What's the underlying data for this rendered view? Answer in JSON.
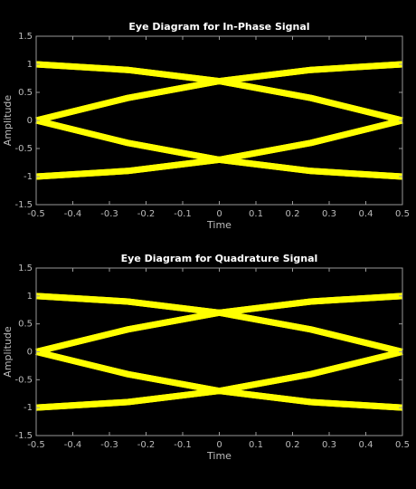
{
  "chart_data": [
    {
      "type": "line",
      "title": "Eye Diagram for In-Phase Signal",
      "x_label": "Time",
      "y_label": "Amplitude",
      "x": [
        -0.5,
        -0.25,
        0,
        0.25,
        0.5
      ],
      "series": [
        {
          "color": "#ffff00",
          "values": [
            1,
            0.9,
            0.7,
            0.9,
            1
          ]
        },
        {
          "color": "#ffff00",
          "values": [
            1,
            0.9,
            0.7,
            0.4,
            0
          ]
        },
        {
          "color": "#ffff00",
          "values": [
            0,
            0.4,
            0.7,
            0.9,
            1
          ]
        },
        {
          "color": "#ffff00",
          "values": [
            0,
            0.4,
            0.7,
            0.4,
            0
          ]
        },
        {
          "color": "#ffff00",
          "values": [
            -1,
            -0.9,
            -0.7,
            -0.9,
            -1
          ]
        },
        {
          "color": "#ffff00",
          "values": [
            -1,
            -0.9,
            -0.7,
            -0.4,
            0
          ]
        },
        {
          "color": "#ffff00",
          "values": [
            0,
            -0.4,
            -0.7,
            -0.9,
            -1
          ]
        },
        {
          "color": "#ffff00",
          "values": [
            0,
            -0.4,
            -0.7,
            -0.4,
            0
          ]
        }
      ],
      "xlim": [
        -0.5,
        0.5
      ],
      "xticks": [
        -0.5,
        -0.4,
        -0.3,
        -0.2,
        -0.1,
        0,
        0.1,
        0.2,
        0.3,
        0.4,
        0.5
      ],
      "ylim": [
        -1.5,
        1.5
      ],
      "yticks": [
        -1.5,
        -1,
        -0.5,
        0,
        0.5,
        1,
        1.5
      ]
    },
    {
      "type": "line",
      "title": "Eye Diagram for Quadrature Signal",
      "x_label": "Time",
      "y_label": "Amplitude",
      "x": [
        -0.5,
        -0.25,
        0,
        0.25,
        0.5
      ],
      "series": [
        {
          "color": "#ffff00",
          "values": [
            1,
            0.9,
            0.7,
            0.9,
            1
          ]
        },
        {
          "color": "#ffff00",
          "values": [
            1,
            0.9,
            0.7,
            0.4,
            0
          ]
        },
        {
          "color": "#ffff00",
          "values": [
            0,
            0.4,
            0.7,
            0.9,
            1
          ]
        },
        {
          "color": "#ffff00",
          "values": [
            0,
            0.4,
            0.7,
            0.4,
            0
          ]
        },
        {
          "color": "#ffff00",
          "values": [
            -1,
            -0.9,
            -0.7,
            -0.9,
            -1
          ]
        },
        {
          "color": "#ffff00",
          "values": [
            -1,
            -0.9,
            -0.7,
            -0.4,
            0
          ]
        },
        {
          "color": "#ffff00",
          "values": [
            0,
            -0.4,
            -0.7,
            -0.9,
            -1
          ]
        },
        {
          "color": "#ffff00",
          "values": [
            0,
            -0.4,
            -0.7,
            -0.4,
            0
          ]
        }
      ],
      "xlim": [
        -0.5,
        0.5
      ],
      "xticks": [
        -0.5,
        -0.4,
        -0.3,
        -0.2,
        -0.1,
        0,
        0.1,
        0.2,
        0.3,
        0.4,
        0.5
      ],
      "ylim": [
        -1.5,
        1.5
      ],
      "yticks": [
        -1.5,
        -1,
        -0.5,
        0,
        0.5,
        1,
        1.5
      ]
    }
  ]
}
